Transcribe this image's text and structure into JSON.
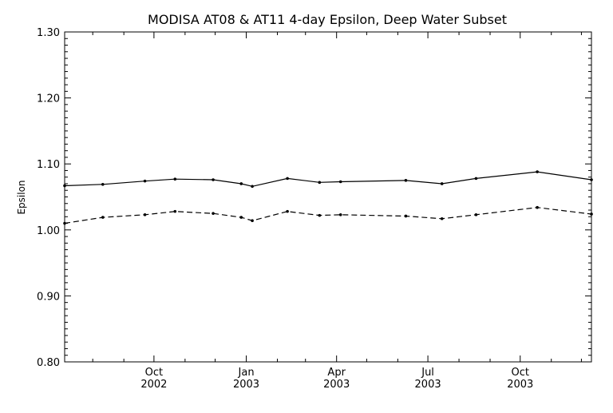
{
  "chart_data": {
    "type": "line",
    "title": "MODISA AT08 & AT11 4-day Epsilon, Deep Water Subset",
    "xlabel": "",
    "ylabel": "Epsilon",
    "xlim": [
      "2002-07-04",
      "2003-12-11"
    ],
    "ylim": [
      0.8,
      1.3
    ],
    "yticks": [
      "0.80",
      "0.90",
      "1.00",
      "1.10",
      "1.20",
      "1.30"
    ],
    "xticks": [
      {
        "date": "2002-10-01",
        "month": "Oct",
        "year": "2002"
      },
      {
        "date": "2003-01-01",
        "month": "Jan",
        "year": "2003"
      },
      {
        "date": "2003-04-01",
        "month": "Apr",
        "year": "2003"
      },
      {
        "date": "2003-07-01",
        "month": "Jul",
        "year": "2003"
      },
      {
        "date": "2003-10-01",
        "month": "Oct",
        "year": "2003"
      }
    ],
    "grid": false,
    "legend": "none",
    "series": [
      {
        "line_style": "solid",
        "x": [
          "2002-07-04",
          "2002-08-11",
          "2002-09-22",
          "2002-10-22",
          "2002-11-29",
          "2002-12-27",
          "2003-01-07",
          "2003-02-11",
          "2003-03-15",
          "2003-04-05",
          "2003-06-09",
          "2003-07-15",
          "2003-08-18",
          "2003-10-18",
          "2003-12-11"
        ],
        "y": [
          1.067,
          1.069,
          1.074,
          1.077,
          1.076,
          1.07,
          1.066,
          1.078,
          1.072,
          1.073,
          1.075,
          1.07,
          1.078,
          1.088,
          1.076
        ]
      },
      {
        "line_style": "dashed",
        "x": [
          "2002-07-04",
          "2002-08-11",
          "2002-09-22",
          "2002-10-22",
          "2002-11-29",
          "2002-12-27",
          "2003-01-07",
          "2003-02-11",
          "2003-03-15",
          "2003-04-05",
          "2003-06-09",
          "2003-07-15",
          "2003-08-18",
          "2003-10-18",
          "2003-12-11"
        ],
        "y": [
          1.01,
          1.019,
          1.023,
          1.028,
          1.025,
          1.019,
          1.014,
          1.028,
          1.022,
          1.023,
          1.021,
          1.017,
          1.023,
          1.034,
          1.024
        ]
      }
    ]
  }
}
